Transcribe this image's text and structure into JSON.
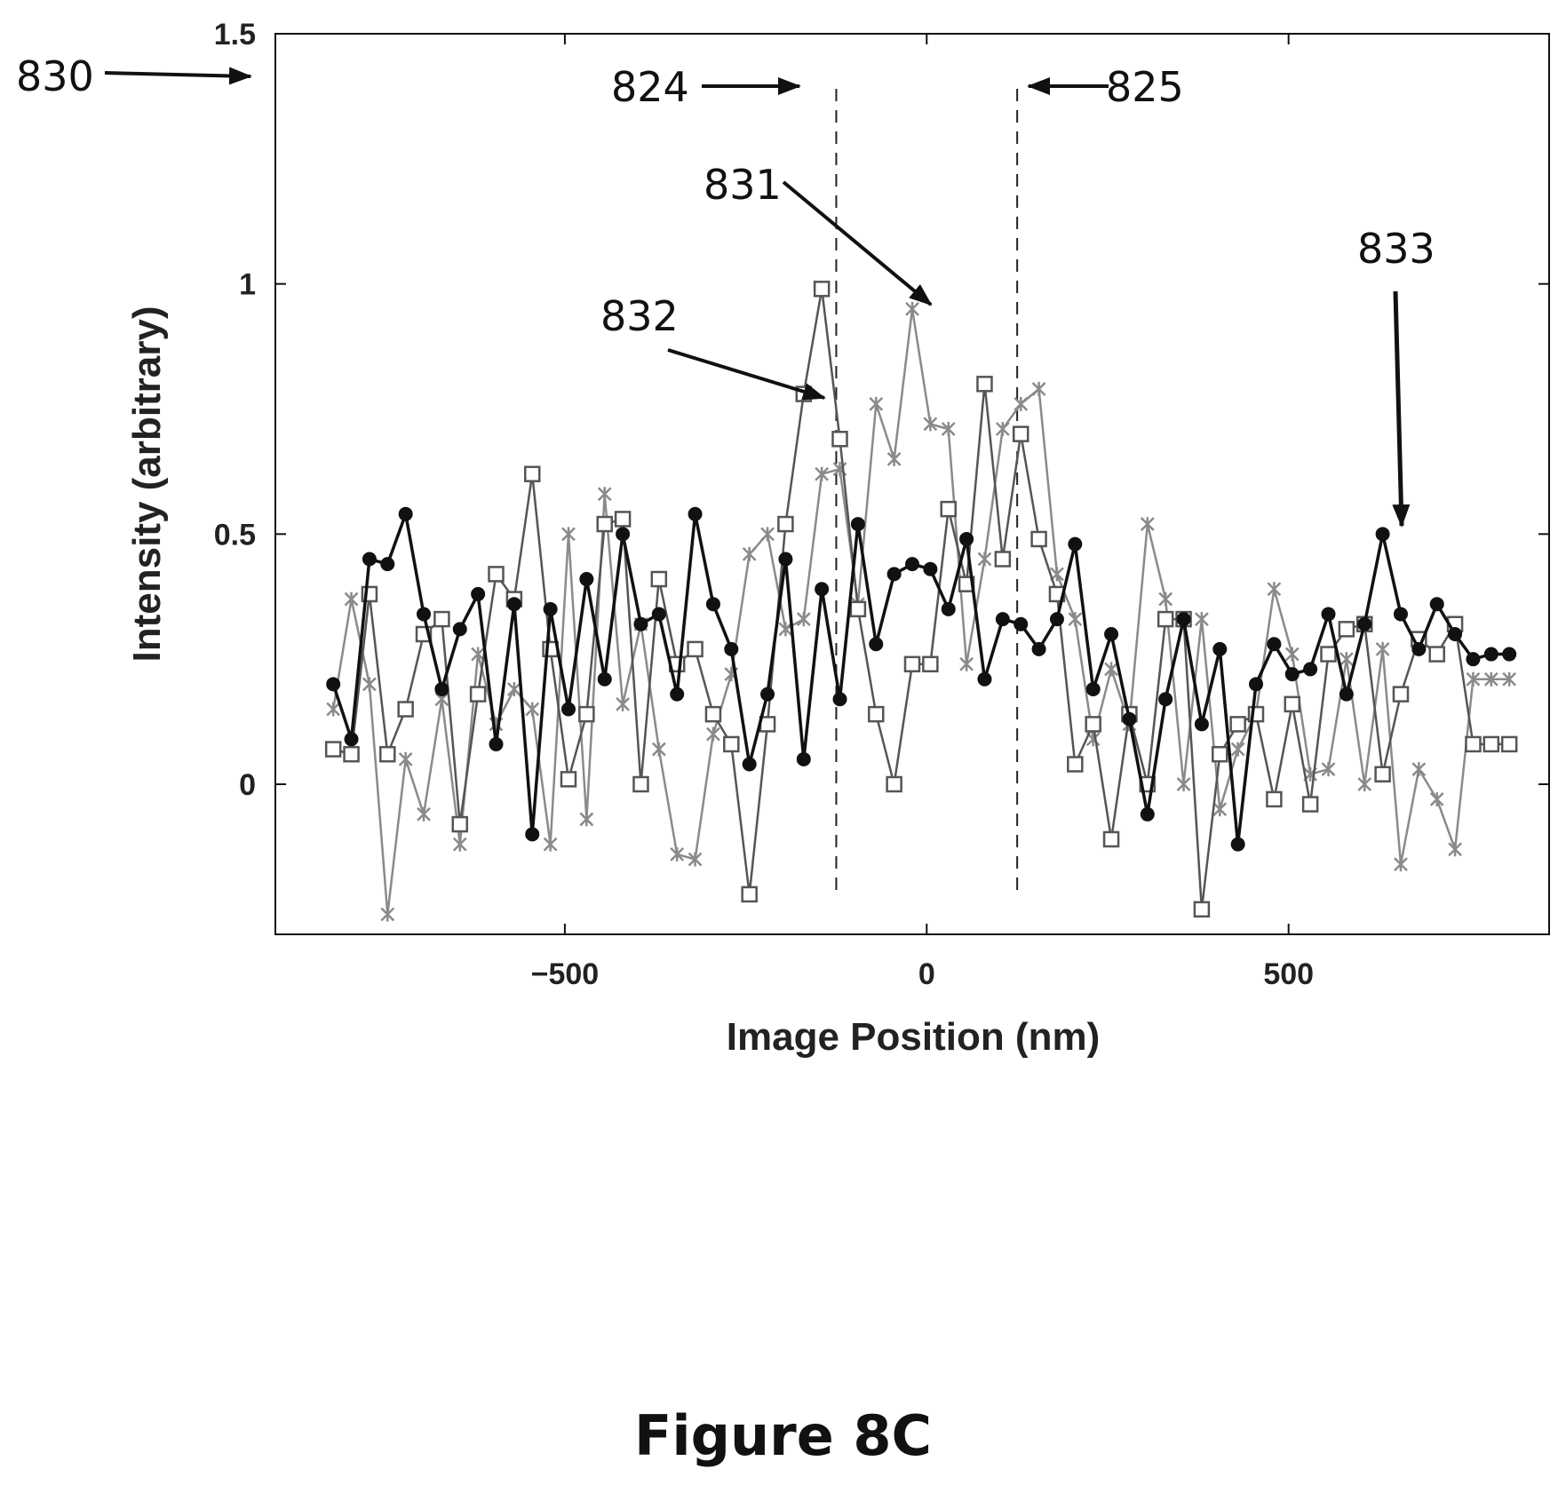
{
  "chart_data": {
    "type": "line",
    "title": "",
    "xlabel": "Image Position (nm)",
    "ylabel": "Intensity (arbitrary)",
    "xlim": [
      -900,
      860
    ],
    "ylim": [
      -0.3,
      1.5
    ],
    "xticks": [
      -500,
      0,
      500
    ],
    "xtick_labels": [
      "−500",
      "0",
      "500"
    ],
    "yticks": [
      0,
      0.5,
      1,
      1.5
    ],
    "ytick_labels": [
      "0",
      "0.5",
      "1",
      "1.5"
    ],
    "grid": false,
    "legend": null,
    "x": [
      -820,
      -795,
      -770,
      -745,
      -720,
      -695,
      -670,
      -645,
      -620,
      -595,
      -570,
      -545,
      -520,
      -495,
      -470,
      -445,
      -420,
      -395,
      -370,
      -345,
      -320,
      -295,
      -270,
      -245,
      -220,
      -195,
      -170,
      -145,
      -120,
      -95,
      -70,
      -45,
      -20,
      5,
      30,
      55,
      80,
      105,
      130,
      155,
      180,
      205,
      230,
      255,
      280,
      305,
      330,
      355,
      380,
      405,
      430,
      455,
      480,
      505,
      530,
      555,
      580,
      605,
      630,
      655,
      680,
      705,
      730,
      755,
      780,
      805
    ],
    "series": [
      {
        "marker": "dot",
        "color": "#111111",
        "values": [
          0.2,
          0.09,
          0.45,
          0.44,
          0.54,
          0.34,
          0.19,
          0.31,
          0.38,
          0.08,
          0.36,
          -0.1,
          0.35,
          0.15,
          0.41,
          0.21,
          0.5,
          0.32,
          0.34,
          0.18,
          0.54,
          0.36,
          0.27,
          0.04,
          0.18,
          0.45,
          0.05,
          0.39,
          0.17,
          0.52,
          0.28,
          0.42,
          0.44,
          0.43,
          0.35,
          0.49,
          0.21,
          0.33,
          0.32,
          0.27,
          0.33,
          0.48,
          0.19,
          0.3,
          0.13,
          -0.06,
          0.17,
          0.33,
          0.12,
          0.27,
          -0.12,
          0.2,
          0.28,
          0.22,
          0.23,
          0.34,
          0.18,
          0.32,
          0.5,
          0.34,
          0.27,
          0.36,
          0.3,
          0.25,
          0.26,
          0.26
        ]
      },
      {
        "marker": "square",
        "color": "#555555",
        "values": [
          0.07,
          0.06,
          0.38,
          0.06,
          0.15,
          0.3,
          0.33,
          -0.08,
          0.18,
          0.42,
          0.37,
          0.62,
          0.27,
          0.01,
          0.14,
          0.52,
          0.53,
          0.0,
          0.41,
          0.24,
          0.27,
          0.14,
          0.08,
          -0.22,
          0.12,
          0.52,
          0.78,
          0.99,
          0.69,
          0.35,
          0.14,
          0.0,
          0.24,
          0.24,
          0.55,
          0.4,
          0.8,
          0.45,
          0.7,
          0.49,
          0.38,
          0.04,
          0.12,
          -0.11,
          0.14,
          0.0,
          0.33,
          0.33,
          -0.25,
          0.06,
          0.12,
          0.14,
          -0.03,
          0.16,
          -0.04,
          0.26,
          0.31,
          0.32,
          0.02,
          0.18,
          0.29,
          0.26,
          0.32,
          0.08,
          0.08,
          0.08
        ]
      },
      {
        "marker": "x",
        "color": "#8a8a8a",
        "values": [
          0.15,
          0.37,
          0.2,
          -0.26,
          0.05,
          -0.06,
          0.17,
          -0.12,
          0.26,
          0.12,
          0.19,
          0.15,
          -0.12,
          0.5,
          -0.07,
          0.58,
          0.16,
          0.32,
          0.07,
          -0.14,
          -0.15,
          0.1,
          0.22,
          0.46,
          0.5,
          0.31,
          0.33,
          0.62,
          0.63,
          0.36,
          0.76,
          0.65,
          0.95,
          0.72,
          0.71,
          0.24,
          0.45,
          0.71,
          0.76,
          0.79,
          0.42,
          0.33,
          0.09,
          0.23,
          0.12,
          0.52,
          0.37,
          0.0,
          0.33,
          -0.05,
          0.07,
          0.14,
          0.39,
          0.26,
          0.02,
          0.03,
          0.25,
          0.0,
          0.27,
          -0.16,
          0.03,
          -0.03,
          -0.13,
          0.21,
          0.21,
          0.21
        ]
      }
    ],
    "dashed_lines_x": [
      -125,
      125
    ],
    "reference_labels": [
      "830",
      "824",
      "825",
      "831",
      "832",
      "833"
    ]
  },
  "caption": "Figure 8C"
}
